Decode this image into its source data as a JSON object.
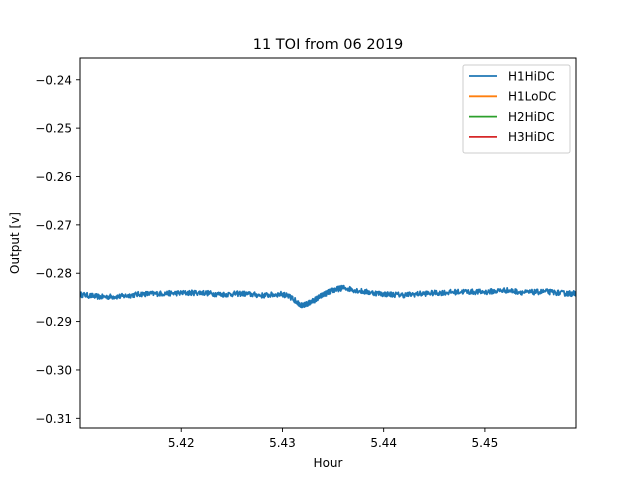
{
  "chart_data": {
    "type": "line",
    "title": "11 TOI from 06 2019",
    "xlabel": "Hour",
    "ylabel": "Output [v]",
    "xlim": [
      5.41,
      5.459
    ],
    "ylim": [
      -0.312,
      -0.2355
    ],
    "xticks": [
      5.42,
      5.43,
      5.44,
      5.45
    ],
    "xtick_labels": [
      "5.42",
      "5.43",
      "5.44",
      "5.45"
    ],
    "yticks": [
      -0.24,
      -0.25,
      -0.26,
      -0.27,
      -0.28,
      -0.29,
      -0.3,
      -0.31
    ],
    "ytick_labels": [
      "−0.24",
      "−0.25",
      "−0.26",
      "−0.27",
      "−0.28",
      "−0.29",
      "−0.30",
      "−0.31"
    ],
    "grid": false,
    "legend_position": "top-right",
    "series": [
      {
        "name": "H1HiDC",
        "color": "#1f77b4",
        "x": [
          5.41,
          5.412,
          5.414,
          5.416,
          5.418,
          5.42,
          5.422,
          5.424,
          5.426,
          5.428,
          5.43,
          5.431,
          5.432,
          5.433,
          5.434,
          5.435,
          5.436,
          5.438,
          5.44,
          5.442,
          5.444,
          5.446,
          5.448,
          5.45,
          5.452,
          5.454,
          5.456,
          5.458,
          5.459
        ],
        "y": [
          -0.2844,
          -0.2849,
          -0.2848,
          -0.2843,
          -0.2842,
          -0.2841,
          -0.284,
          -0.2844,
          -0.2842,
          -0.2846,
          -0.2843,
          -0.2852,
          -0.2868,
          -0.2858,
          -0.2845,
          -0.2835,
          -0.283,
          -0.2838,
          -0.2843,
          -0.2845,
          -0.2842,
          -0.284,
          -0.2838,
          -0.2839,
          -0.2835,
          -0.284,
          -0.2838,
          -0.2842,
          -0.2842
        ]
      },
      {
        "name": "H1LoDC",
        "color": "#ff7f0e",
        "x": [],
        "y": []
      },
      {
        "name": "H2HiDC",
        "color": "#2ca02c",
        "x": [],
        "y": []
      },
      {
        "name": "H3HiDC",
        "color": "#d62728",
        "x": [],
        "y": []
      }
    ]
  }
}
